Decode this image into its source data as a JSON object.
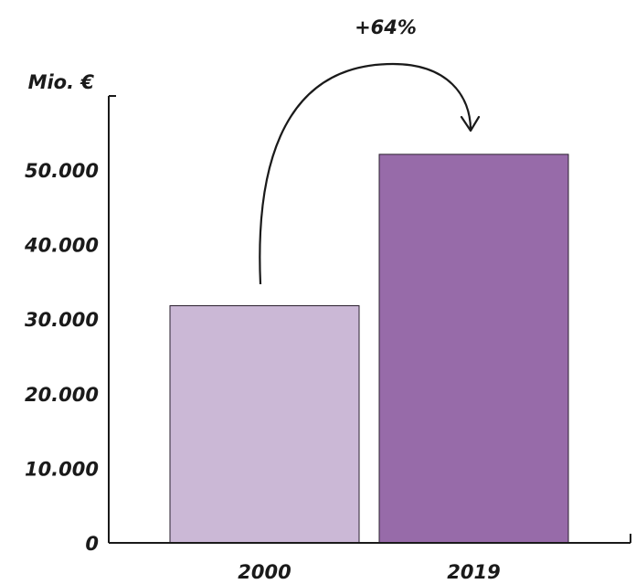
{
  "chart_data": {
    "type": "bar",
    "categories": [
      "2000",
      "2019"
    ],
    "values": [
      31800,
      52100
    ],
    "ylabel": "Mio. €",
    "ylim": [
      0,
      57000
    ],
    "yticks": [
      0,
      10000,
      20000,
      30000,
      40000,
      50000
    ],
    "ytick_labels": [
      "0",
      "10.000",
      "20.000",
      "30.000",
      "40.000",
      "50.000"
    ],
    "annotation": "+64%",
    "grid": false,
    "legend": "none",
    "colors": [
      "#cbb8d6",
      "#976ba9"
    ]
  }
}
